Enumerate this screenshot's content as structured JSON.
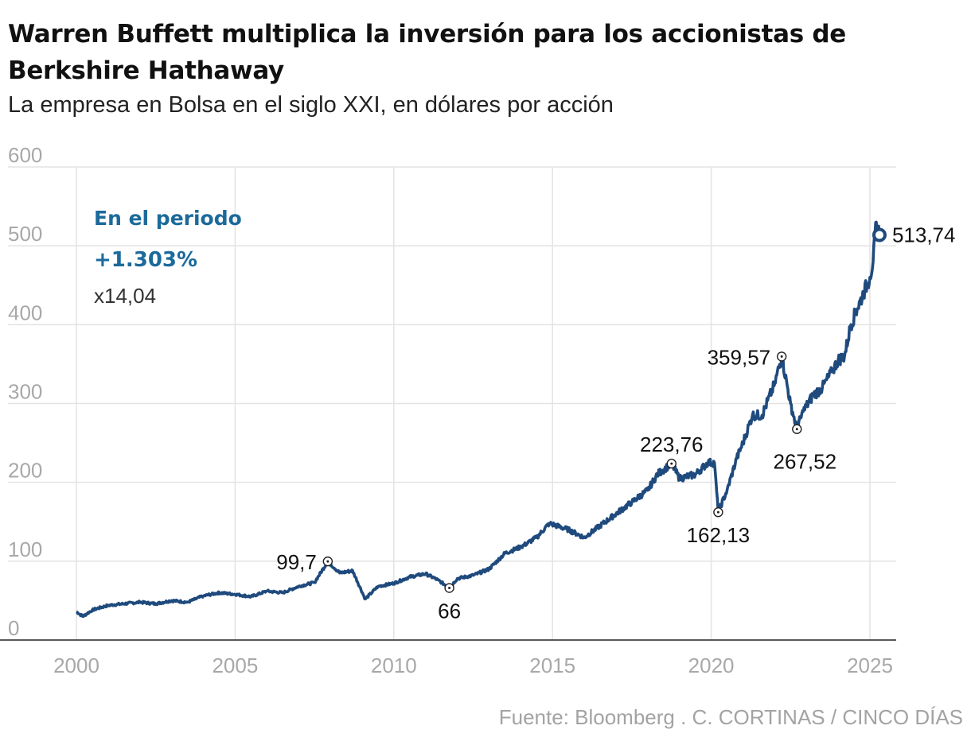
{
  "title": "Warren Buffett multiplica la inversión para los accionistas de Berkshire Hathaway",
  "subtitle": "La empresa en Bolsa en el siglo XXI, en dólares por acción",
  "source": "Fuente: Bloomberg . C. CORTINAS / CINCO DÍAS",
  "colors": {
    "line": "#1f4a7d",
    "accent": "#1b6a9c",
    "grid": "#e3e3e3",
    "tick": "#a8a8a8"
  },
  "summary": {
    "heading": "En el periodo",
    "percent": "+1.303%",
    "multiple": "x14,04"
  },
  "chart_data": {
    "type": "line",
    "title": "Warren Buffett multiplica la inversión para los accionistas de Berkshire Hathaway",
    "xlabel": "",
    "ylabel": "dólares por acción",
    "xlim": [
      2000,
      2025.3
    ],
    "ylim": [
      0,
      600
    ],
    "xticks": [
      2000,
      2005,
      2010,
      2015,
      2020,
      2025
    ],
    "yticks": [
      0,
      100,
      200,
      300,
      400,
      500,
      600
    ],
    "grid": true,
    "series": [
      {
        "name": "Berkshire Hathaway",
        "x": [
          2000,
          2000.2,
          2000.5,
          2001,
          2002,
          2002.5,
          2003,
          2003.5,
          2004,
          2004.5,
          2005,
          2005.5,
          2006,
          2006.5,
          2007,
          2007.5,
          2007.92,
          2008.3,
          2008.7,
          2009.1,
          2009.5,
          2010,
          2010.5,
          2011,
          2011.4,
          2011.75,
          2012,
          2012.5,
          2013,
          2013.5,
          2014,
          2014.5,
          2014.9,
          2015.5,
          2016,
          2016.5,
          2017,
          2017.5,
          2018,
          2018.3,
          2018.75,
          2019,
          2019.5,
          2019.9,
          2020.1,
          2020.22,
          2020.5,
          2020.8,
          2021,
          2021.3,
          2021.6,
          2022,
          2022.22,
          2022.5,
          2022.7,
          2022.9,
          2023.2,
          2023.5,
          2023.8,
          2024,
          2024.2,
          2024.4,
          2024.6,
          2024.8,
          2025,
          2025.1,
          2025.2,
          2025.3
        ],
        "values": [
          36,
          30,
          38,
          44,
          48,
          46,
          50,
          48,
          56,
          60,
          58,
          55,
          62,
          60,
          68,
          73,
          99.7,
          85,
          88,
          52,
          68,
          72,
          80,
          84,
          76,
          66,
          78,
          82,
          90,
          110,
          118,
          130,
          148,
          140,
          130,
          145,
          160,
          175,
          190,
          210,
          223.76,
          205,
          210,
          225,
          225,
          162.13,
          190,
          230,
          250,
          285,
          285,
          325,
          359.57,
          300,
          267.52,
          290,
          310,
          320,
          340,
          355,
          360,
          400,
          420,
          440,
          460,
          480,
          530,
          513.74
        ]
      }
    ],
    "annotations": [
      {
        "x": 2007.92,
        "y": 99.7,
        "label": "99,7",
        "side": "left"
      },
      {
        "x": 2011.75,
        "y": 66,
        "label": "66",
        "side": "below"
      },
      {
        "x": 2018.75,
        "y": 223.76,
        "label": "223,76",
        "side": "above"
      },
      {
        "x": 2020.22,
        "y": 162.13,
        "label": "162,13",
        "side": "below"
      },
      {
        "x": 2022.22,
        "y": 359.57,
        "label": "359,57",
        "side": "left"
      },
      {
        "x": 2022.7,
        "y": 267.52,
        "label": "267,52",
        "side": "below"
      },
      {
        "x": 2025.3,
        "y": 513.74,
        "label": "513,74",
        "side": "right"
      }
    ]
  }
}
